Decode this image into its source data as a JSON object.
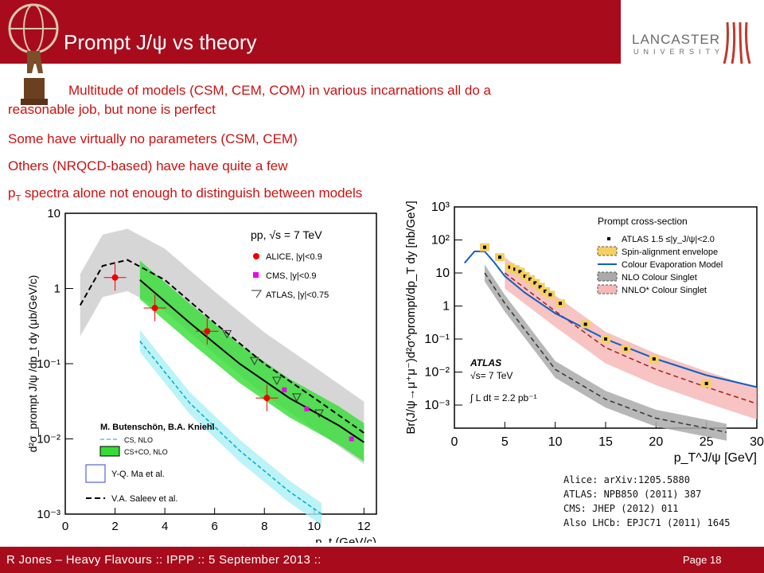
{
  "slide": {
    "title": "Prompt J/ψ vs theory",
    "bullets": [
      "Multitude of models (CSM, CEM, COM) in various incarnations all do a",
      "reasonable job, but none is perfect",
      "Some have virtually no parameters (CSM, CEM)",
      "Others (NRQCD-based) have have quite a few",
      "p",
      "T",
      " spectra alone not enough to distinguish between models"
    ],
    "logo": {
      "word": "LANCASTER",
      "sub": "UNIVERSITY"
    },
    "references": [
      "Alice: arXiv:1205.5880",
      "ATLAS: NPB850 (2011) 387",
      "CMS: JHEP (2012) 011",
      "Also LHCb: EPJC71 (2011) 1645"
    ],
    "footer": "R Jones – Heavy Flavours  ::  IPPP  :: 5 September 2013  ::",
    "page": "Page 18"
  },
  "colors": {
    "brand": "#a80c1c",
    "bullet": "#cc1111"
  },
  "chart_data": [
    {
      "type": "line",
      "xlabel": "p_t (GeV/c)",
      "ylabel": "d²σ_prompt J/ψ /dp_t dy (μb/GeV/c)",
      "xlim": [
        0,
        12.5
      ],
      "ylim": [
        0.001,
        10
      ],
      "yscale": "log",
      "x_ticks": [
        "0",
        "2",
        "4",
        "6",
        "8",
        "10",
        "12"
      ],
      "y_ticks": [
        "10",
        "1",
        "10⁻¹",
        "10⁻²",
        "10⁻³"
      ],
      "legend_header": "pp, √s = 7 TeV",
      "series": [
        {
          "name": "ALICE, |y|<0.9",
          "marker": "circle",
          "color": "#ee0000",
          "x": [
            2,
            3.6,
            5.7,
            8.1
          ],
          "y": [
            1.4,
            0.55,
            0.27,
            0.035
          ]
        },
        {
          "name": "CMS, |y|<0.9",
          "marker": "square",
          "color": "#ee00ee",
          "x": [
            8.8,
            9.7,
            11.5
          ],
          "y": [
            0.045,
            0.025,
            0.01
          ]
        },
        {
          "name": "ATLAS, |y|<0.75",
          "marker": "triangle",
          "color": "#333333",
          "x": [
            6.5,
            7.6,
            8.5,
            9.3,
            10.2
          ],
          "y": [
            0.25,
            0.11,
            0.06,
            0.036,
            0.022
          ]
        },
        {
          "name": "CS, NLO",
          "color": "#00bcd4",
          "x": [
            3,
            5,
            7,
            9,
            10.3
          ],
          "y": [
            0.2,
            0.03,
            0.007,
            0.002,
            0.001
          ]
        },
        {
          "name": "CS+CO, NLO",
          "color": "#00cc00",
          "x": [
            3,
            5,
            7,
            9,
            11,
            12
          ],
          "y": [
            1.3,
            0.35,
            0.1,
            0.035,
            0.015,
            0.009
          ]
        },
        {
          "name": "V.A. Saleev et al.",
          "color": "#000000",
          "x": [
            0.6,
            1.5,
            2.5,
            4,
            6,
            8,
            10,
            12
          ],
          "y": [
            0.6,
            2,
            2.4,
            1.3,
            0.35,
            0.1,
            0.035,
            0.012
          ]
        }
      ],
      "annotations": [
        "M. Butenschön, B.A. Kniehl",
        "Y-Q. Ma et al."
      ]
    },
    {
      "type": "line",
      "xlabel": "p_T^J/ψ [GeV]",
      "ylabel": "Br(J/ψ→μ⁺μ⁻)d²σ^prompt/dp_T dy [nb/GeV]",
      "xlim": [
        0,
        30
      ],
      "ylim": [
        0.0002,
        1000
      ],
      "yscale": "log",
      "x_ticks": [
        "0",
        "5",
        "10",
        "15",
        "20",
        "25",
        "30"
      ],
      "y_ticks": [
        "10³",
        "10²",
        "10",
        "1",
        "10⁻¹",
        "10⁻²",
        "10⁻³"
      ],
      "legend_header": "Prompt cross-section",
      "series": [
        {
          "name": "ATLAS 1.5 ≤|y_J/ψ|<2.0",
          "marker": "square",
          "color": "#000000",
          "x": [
            3,
            4.5,
            5.5,
            6,
            6.5,
            7,
            7.5,
            8,
            8.5,
            9,
            9.5,
            10.5,
            13,
            15,
            17,
            19.8,
            25
          ],
          "y": [
            60,
            30,
            15,
            13,
            11,
            8,
            6.5,
            5,
            3.8,
            2.8,
            2.2,
            1.2,
            0.28,
            0.1,
            0.05,
            0.025,
            0.0045
          ]
        },
        {
          "name": "Colour Evaporation Model",
          "color": "#1060c0",
          "x": [
            1,
            2,
            3,
            4,
            5,
            7,
            10,
            15,
            20,
            25,
            30
          ],
          "y": [
            20,
            45,
            45,
            20,
            8,
            2.5,
            0.6,
            0.1,
            0.025,
            0.008,
            0.0035
          ]
        },
        {
          "name": "NLO Colour Singlet",
          "color": "#888888",
          "x": [
            3,
            5,
            10,
            15,
            20,
            25,
            27
          ],
          "y": [
            10,
            1.2,
            0.012,
            0.0015,
            0.0004,
            0.0002,
            0.00015
          ]
        },
        {
          "name": "NNLO* Colour Singlet",
          "color": "#e08080",
          "x": [
            5,
            10,
            15,
            20,
            25,
            30
          ],
          "y": [
            10,
            0.7,
            0.055,
            0.012,
            0.0035,
            0.0011
          ]
        }
      ],
      "legend_extra": [
        "Spin-alignment envelope"
      ],
      "annotations": [
        "ATLAS",
        "√s= 7 TeV",
        "∫ L dt = 2.2 pb⁻¹"
      ]
    }
  ]
}
